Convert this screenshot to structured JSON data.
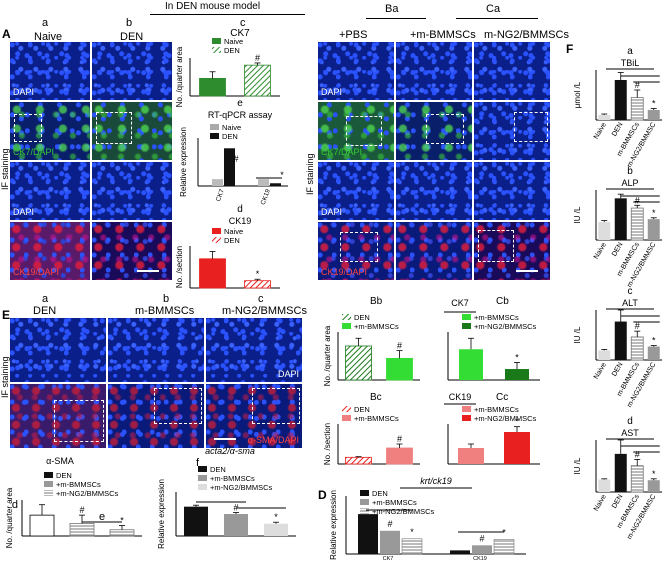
{
  "header": {
    "model_title": "In DEN mouse model",
    "panel_A": "A",
    "panel_E": "E",
    "panel_D": "D",
    "panel_F": "F",
    "col_a": "a",
    "col_b": "b",
    "col_c": "c",
    "col_Ba": "Ba",
    "col_Ca": "Ca"
  },
  "left_A": {
    "naive": "Naive",
    "den": "DEN",
    "if_staining": "IF staining",
    "dapi": "DAPI",
    "ck7_dapi": "CK7/DAPI",
    "ck19_dapi": "CK19/DAPI"
  },
  "right_A": {
    "pbs": "+PBS",
    "bm": "+m-BMMSCs",
    "ng2": "m-NG2/BMMSCs",
    "if_staining": "IF staining",
    "dapi": "DAPI",
    "ck7_dapi": "CK7/DAPI",
    "ck19_dapi": "CK19/DAPI"
  },
  "E_panel": {
    "den": "DEN",
    "bm": "m-BMMSCs",
    "ng2": "m-NG2/BMMSCs",
    "if_staining": "IF staining",
    "dapi": "DAPI",
    "sma_dapi": "α-SMA/DAPI"
  },
  "colors": {
    "naive": "#2e8b2e",
    "den_black": "#111111",
    "light_gray": "#dddddd",
    "bm_gray": "#999999",
    "red": "#e8201f",
    "pink": "#f08080",
    "bright_green": "#33dd33",
    "dark_green": "#1a7a1a"
  },
  "chart_data": [
    {
      "id": "Ac",
      "type": "bar",
      "title": "CK7",
      "panel": "c",
      "ylabel": "No. /quarter area",
      "legend": [
        "Naive",
        "DEN"
      ],
      "values": [
        8,
        14
      ],
      "errors": [
        3,
        1
      ],
      "marks": [
        "",
        "#"
      ]
    },
    {
      "id": "Ae",
      "type": "bar",
      "title": "RT-qPCR assay",
      "panel": "e",
      "ylabel": "Relative expression",
      "legend": [
        "Naive",
        "DEN"
      ],
      "categories": [
        "CK7",
        "CK19"
      ],
      "series": [
        {
          "name": "Naive",
          "values": [
            1,
            1
          ]
        },
        {
          "name": "DEN",
          "values": [
            5.5,
            0.4
          ]
        }
      ],
      "marks": [
        "#",
        "*"
      ]
    },
    {
      "id": "Ad",
      "type": "bar",
      "title": "CK19",
      "panel": "d",
      "ylabel": "No. /section",
      "legend": [
        "Naive",
        "DEN"
      ],
      "values": [
        20,
        5
      ],
      "errors": [
        5,
        1
      ],
      "marks": [
        "",
        "*"
      ]
    },
    {
      "id": "Bb",
      "type": "bar",
      "title": "CK7",
      "panel": "Bb",
      "ylabel": "No. /quarter area",
      "legend": [
        "DEN",
        "+m-BMMSCs"
      ],
      "values": [
        22,
        14
      ],
      "errors": [
        5,
        5
      ],
      "marks": [
        "",
        "#"
      ]
    },
    {
      "id": "Cb",
      "type": "bar",
      "panel": "Cb",
      "legend": [
        "+m-BMMSCs",
        "+m-NG2/BMMSCs"
      ],
      "values": [
        14,
        5
      ],
      "errors": [
        5,
        3
      ],
      "marks": [
        "",
        "*"
      ]
    },
    {
      "id": "Bc",
      "type": "bar",
      "title": "CK19",
      "panel": "Bc",
      "ylabel": "No. /section",
      "legend": [
        "DEN",
        "+m-BMMSCs"
      ],
      "values": [
        5,
        12
      ],
      "errors": [
        0.5,
        3
      ],
      "marks": [
        "",
        "#"
      ]
    },
    {
      "id": "Cc",
      "type": "bar",
      "panel": "Cc",
      "legend": [
        "+m-BMMSCs",
        "+m-NG2/BMMSCs"
      ],
      "values": [
        12,
        24
      ],
      "errors": [
        3,
        4
      ],
      "marks": [
        "",
        "*"
      ]
    },
    {
      "id": "Ed",
      "type": "bar",
      "title": "α-SMA",
      "panel": "d",
      "ylabel": "No. /quarter area",
      "legend": [
        "DEN",
        "+m-BMMSCs",
        "+m-NG2/BMMSCs"
      ],
      "values": [
        10,
        6,
        3
      ],
      "errors": [
        5,
        4,
        2
      ],
      "marks": [
        "",
        "#",
        "*"
      ],
      "e_label": "e"
    },
    {
      "id": "Ef",
      "type": "bar",
      "title": "acta2/α-sma",
      "panel": "f",
      "ylabel": "Relative expression",
      "legend": [
        "DEN",
        "+m-BMMSCs",
        "+m-NG2/BMMSCs"
      ],
      "values": [
        1.0,
        0.75,
        0.42
      ],
      "errors": [
        0.05,
        0.05,
        0.05
      ],
      "marks": [
        "",
        "#",
        "*"
      ]
    },
    {
      "id": "D",
      "type": "bar",
      "title": "krt/ck19",
      "ylabel": "Relative expression",
      "legend": [
        "DEN",
        "+m-BMMSCs",
        "+m-NG2/BMMSCs"
      ],
      "categories": [
        "CK7",
        "CK19"
      ],
      "series": [
        {
          "name": "DEN",
          "values": [
            5.5,
            0.5
          ]
        },
        {
          "name": "+m-BMMSCs",
          "values": [
            3.2,
            1.2
          ]
        },
        {
          "name": "+m-NG2/BMMSCs",
          "values": [
            2.1,
            2.0
          ]
        }
      ],
      "marks": [
        "#",
        "*",
        "#",
        "*"
      ]
    },
    {
      "id": "Fa",
      "type": "bar",
      "title": "TBiL",
      "panel": "a",
      "ylabel": "μmol /L",
      "categories": [
        "Naive",
        "DEN",
        "m-BMMSCs",
        "m-NG2/BMMSC"
      ],
      "values": [
        1,
        8,
        4.5,
        2
      ],
      "errors": [
        0.2,
        1.5,
        1.5,
        0.3
      ],
      "marks": [
        "",
        "",
        "#",
        "*"
      ]
    },
    {
      "id": "Fb",
      "type": "bar",
      "title": "ALP",
      "panel": "b",
      "ylabel": "IU /L",
      "categories": [
        "Naive",
        "DEN",
        "m-BMMSCs",
        "m-NG2/BMMSC"
      ],
      "values": [
        130,
        300,
        230,
        150
      ],
      "errors": [
        10,
        30,
        20,
        10
      ],
      "marks": [
        "",
        "",
        "#",
        "*"
      ]
    },
    {
      "id": "Fc",
      "type": "bar",
      "title": "ALT",
      "panel": "c",
      "ylabel": "IU /L",
      "categories": [
        "Naive",
        "DEN",
        "m-BMMSCs",
        "m-NG2/BMMSC"
      ],
      "values": [
        50,
        200,
        120,
        70
      ],
      "errors": [
        5,
        60,
        30,
        5
      ],
      "marks": [
        "",
        "",
        "#",
        "*"
      ]
    },
    {
      "id": "Fd",
      "type": "bar",
      "title": "AST",
      "panel": "d",
      "ylabel": "IU /L",
      "categories": [
        "Naive",
        "DEN",
        "m-BMMSCs",
        "m-NG2/BMMSC"
      ],
      "values": [
        180,
        550,
        380,
        170
      ],
      "errors": [
        10,
        200,
        90,
        20
      ],
      "marks": [
        "",
        "",
        "#",
        "*"
      ]
    }
  ]
}
